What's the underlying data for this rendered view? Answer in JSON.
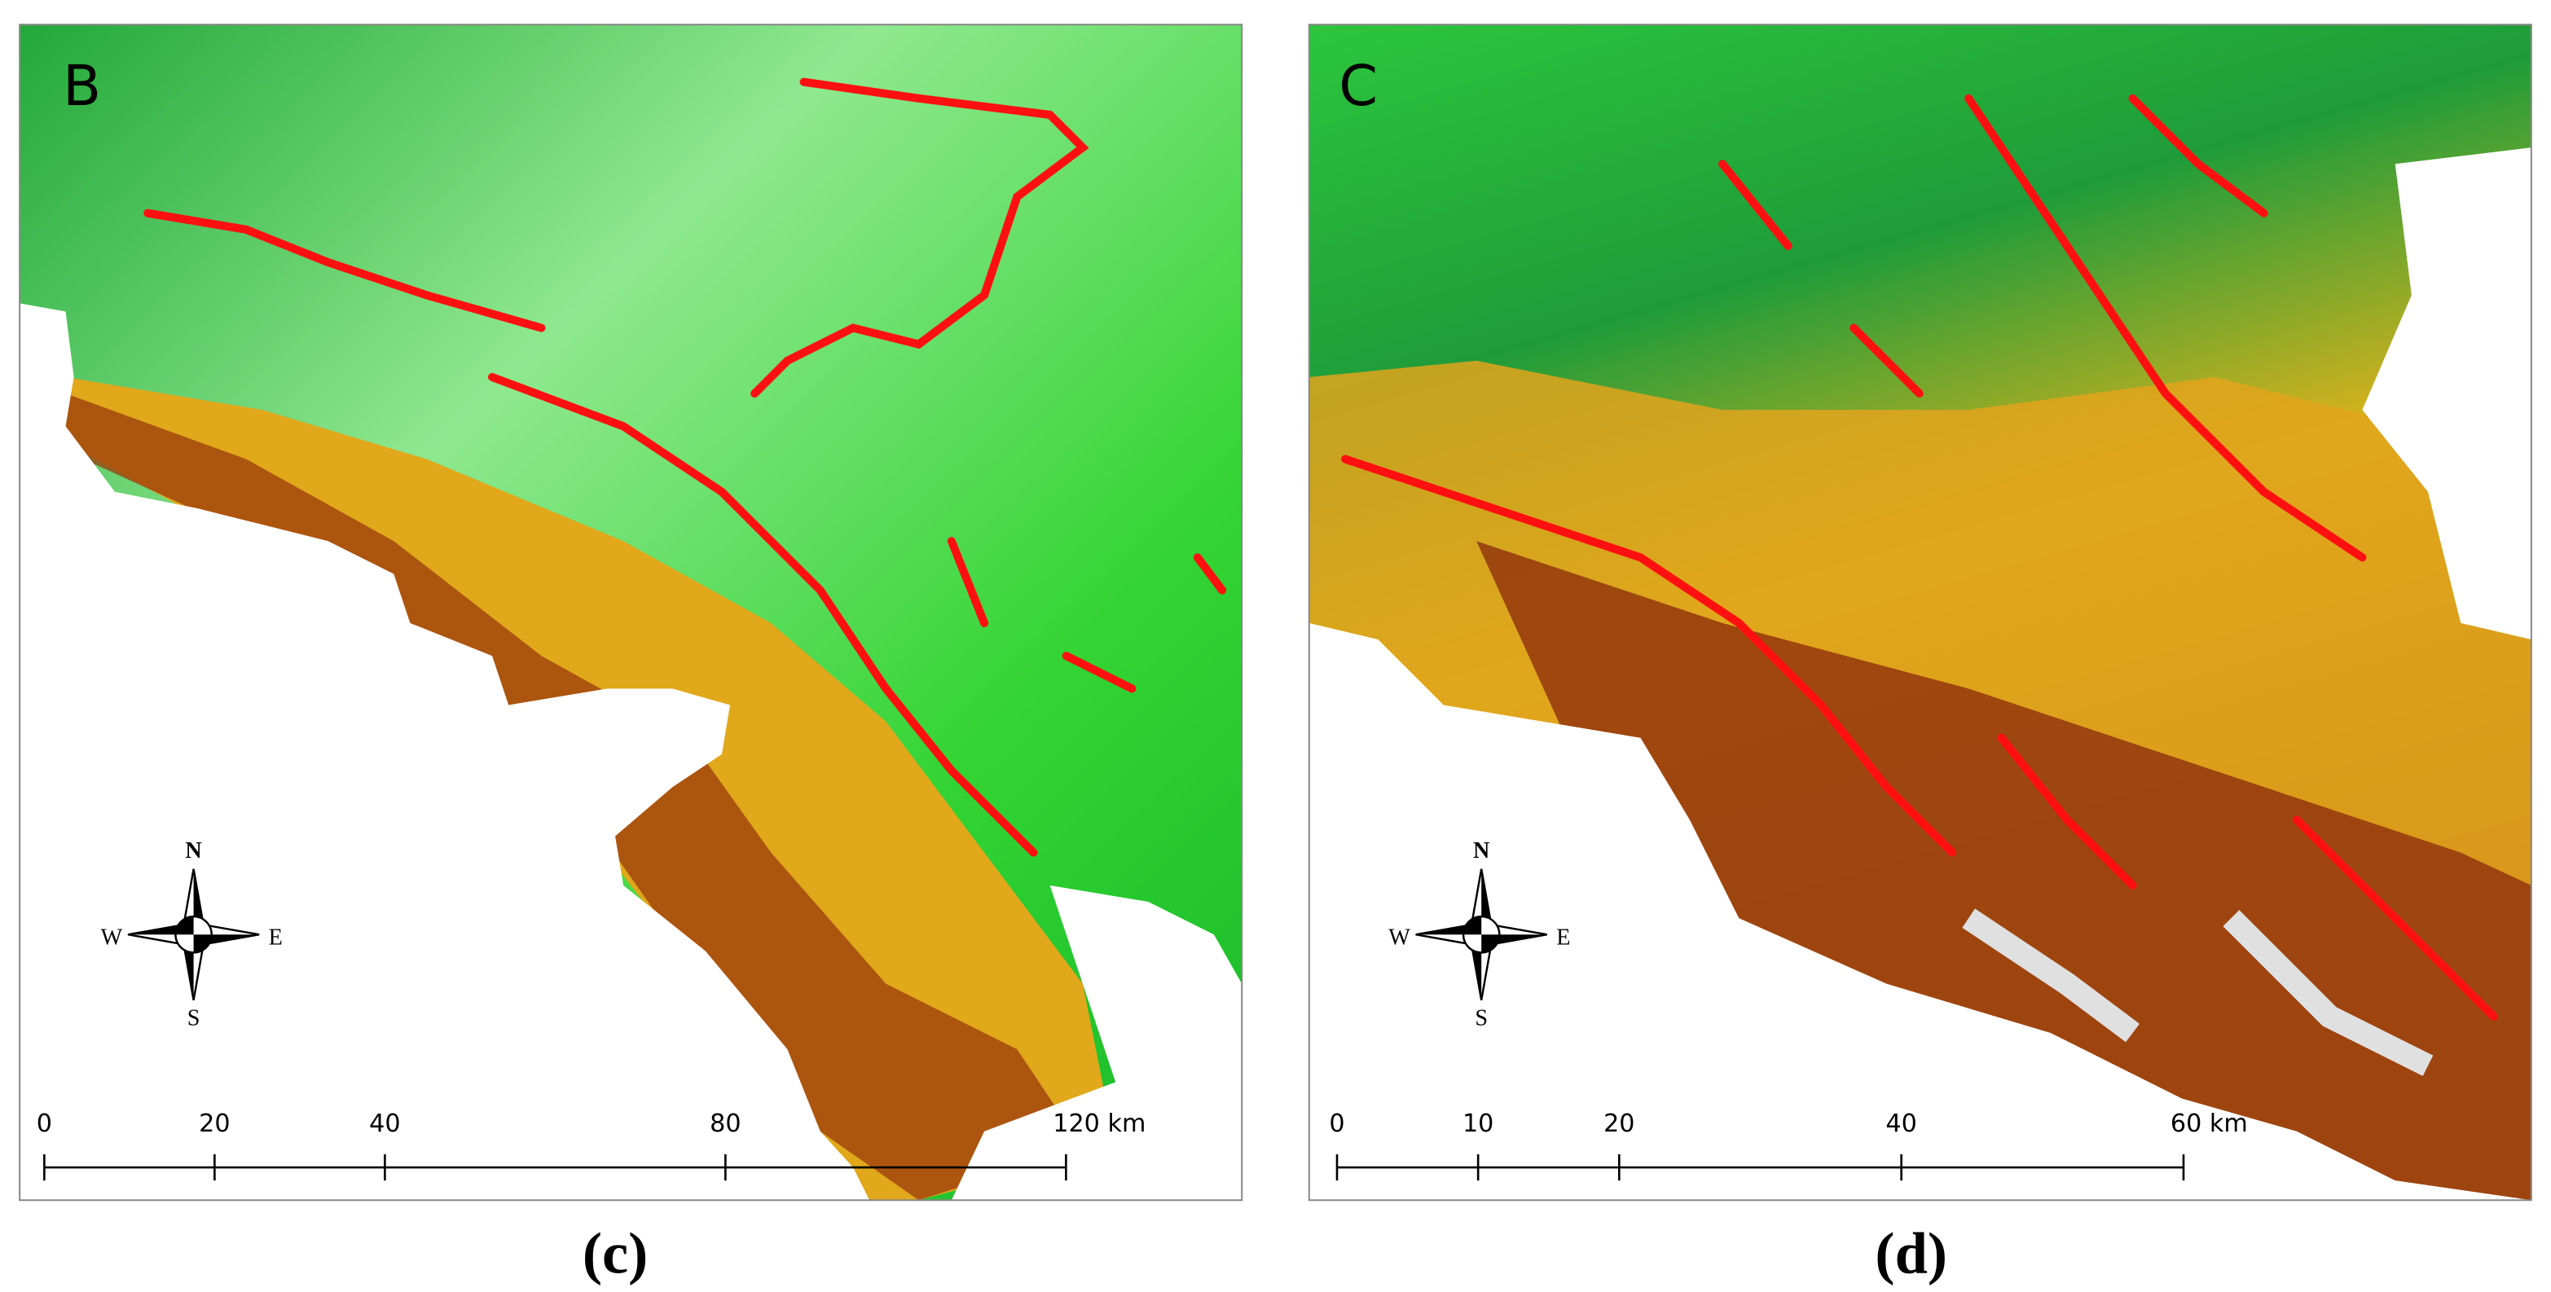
{
  "panels": [
    {
      "label": "B",
      "caption": "(c)",
      "compass": {
        "n": "N",
        "s": "S",
        "e": "E",
        "w": "W"
      },
      "scale_bar": {
        "ticks": [
          0,
          20,
          40,
          80,
          {
            "value": 120,
            "label": "120 km"
          }
        ]
      }
    },
    {
      "label": "C",
      "caption": "(d)",
      "compass": {
        "n": "N",
        "s": "S",
        "e": "E",
        "w": "W"
      },
      "scale_bar": {
        "ticks": [
          0,
          10,
          20,
          40,
          {
            "value": 60,
            "label": "60 km"
          }
        ]
      }
    }
  ]
}
